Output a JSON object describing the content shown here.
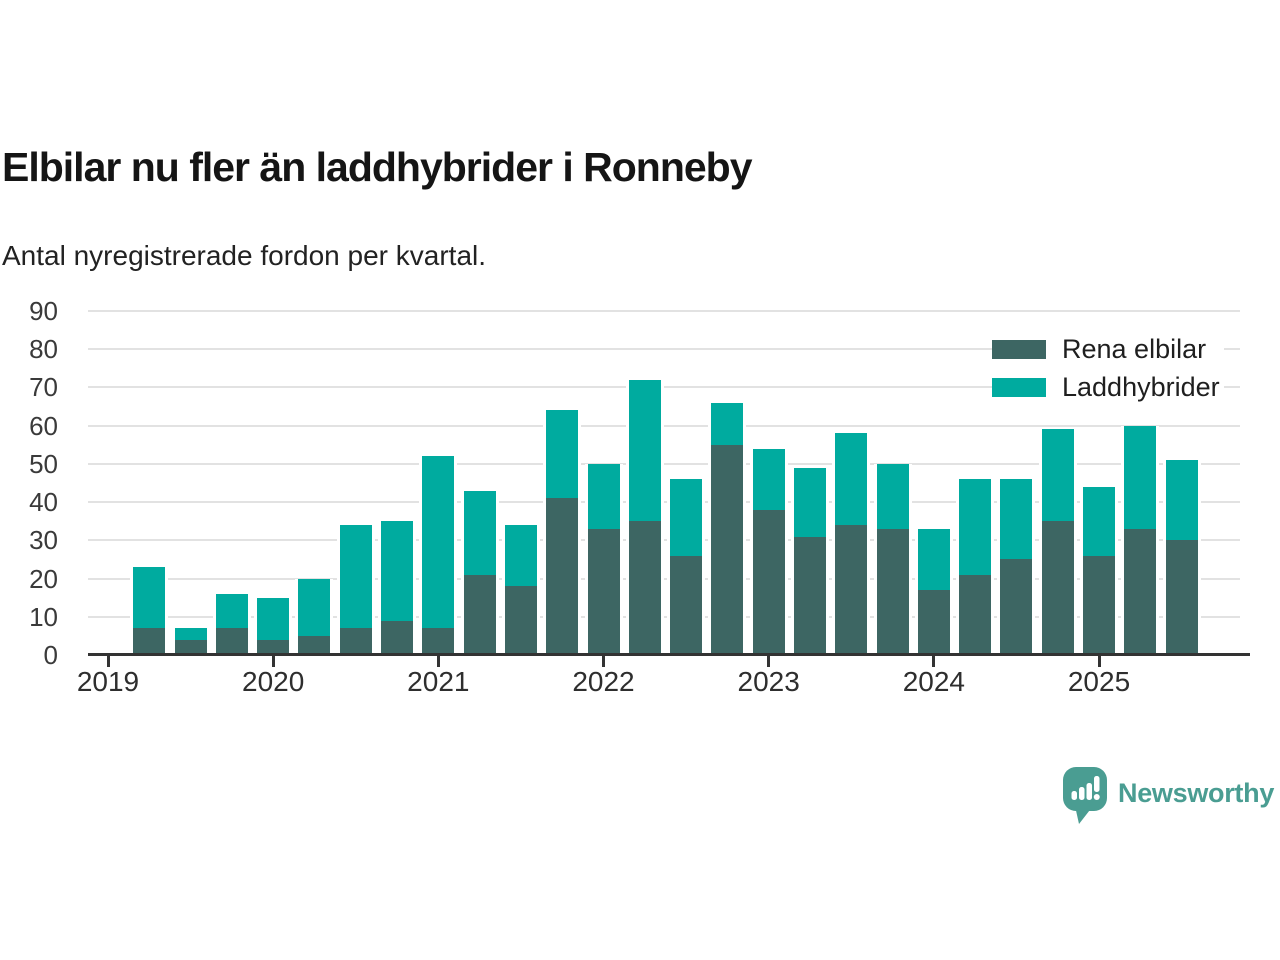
{
  "title": "Elbilar nu fler än laddhybrider i Ronneby",
  "subtitle": "Antal nyregistrerade fordon per kvartal.",
  "branding": {
    "name": "Newsworthy"
  },
  "colors": {
    "rena_elbilar": "#3d6663",
    "laddhybrider": "#00ab9f",
    "grid": "#e2e2e2",
    "axis": "#333333",
    "title_text": "#151515",
    "label_text": "#3a3a3a",
    "brand": "#4a9d92"
  },
  "chart_data": {
    "type": "bar",
    "stacked": true,
    "title": "Elbilar nu fler än laddhybrider i Ronneby",
    "subtitle": "Antal nyregistrerade fordon per kvartal.",
    "x": [
      "2019 Q2",
      "2019 Q3",
      "2019 Q4",
      "2020 Q1",
      "2020 Q2",
      "2020 Q3",
      "2020 Q4",
      "2021 Q1",
      "2021 Q2",
      "2021 Q3",
      "2021 Q4",
      "2022 Q1",
      "2022 Q2",
      "2022 Q3",
      "2022 Q4",
      "2023 Q1",
      "2023 Q2",
      "2023 Q3",
      "2023 Q4",
      "2024 Q1",
      "2024 Q2",
      "2024 Q3",
      "2024 Q4",
      "2025 Q1",
      "2025 Q2",
      "2025 Q3"
    ],
    "series": [
      {
        "name": "Rena elbilar",
        "color": "#3d6663",
        "values": [
          7,
          4,
          7,
          4,
          5,
          7,
          9,
          7,
          21,
          18,
          41,
          33,
          35,
          26,
          55,
          38,
          31,
          34,
          33,
          17,
          21,
          25,
          35,
          26,
          33,
          30
        ]
      },
      {
        "name": "Laddhybrider",
        "color": "#00ab9f",
        "values": [
          16,
          3,
          9,
          11,
          15,
          27,
          26,
          45,
          22,
          16,
          23,
          17,
          37,
          20,
          11,
          16,
          18,
          24,
          17,
          16,
          25,
          21,
          24,
          18,
          27,
          21
        ]
      }
    ],
    "totals": [
      23,
      7,
      16,
      15,
      20,
      34,
      35,
      52,
      43,
      34,
      64,
      50,
      72,
      46,
      66,
      54,
      49,
      58,
      50,
      33,
      46,
      46,
      59,
      44,
      60,
      51
    ],
    "ylim": [
      0,
      90
    ],
    "yticks": [
      0,
      10,
      20,
      30,
      40,
      50,
      60,
      70,
      80,
      90
    ],
    "xticks": [
      "2019",
      "2020",
      "2021",
      "2022",
      "2023",
      "2024",
      "2025"
    ],
    "grid": true,
    "legend_position": "top-right"
  }
}
